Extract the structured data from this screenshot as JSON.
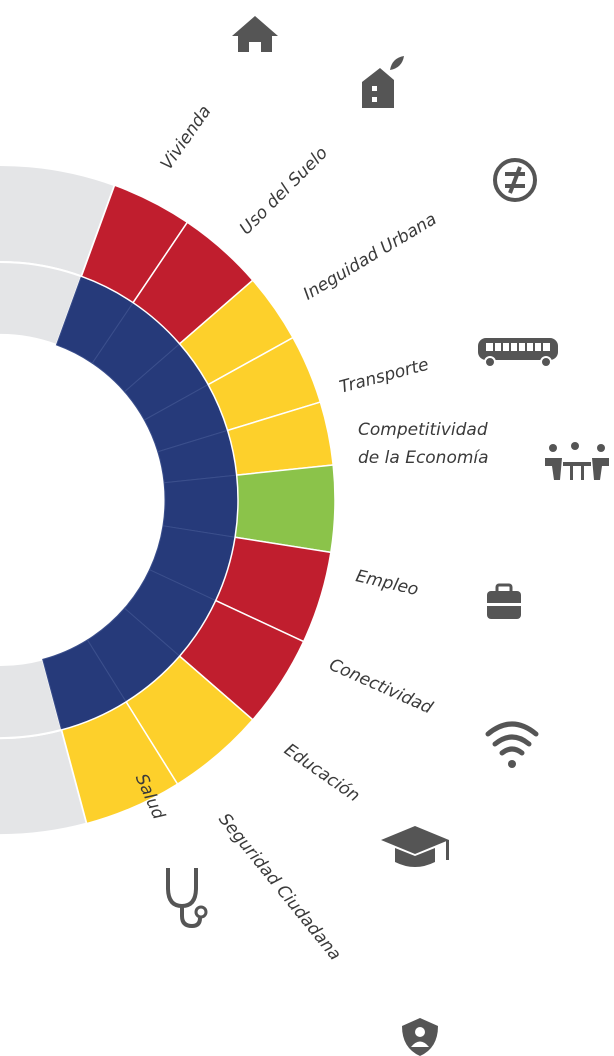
{
  "nodes": [
    {
      "lines": [
        "Vivienda"
      ],
      "color": "#c01e2e"
    },
    {
      "lines": [
        "Uso del Suelo"
      ],
      "color": "#c01e2e"
    },
    {
      "lines": [
        "Ineguidad Urbana"
      ],
      "color": "#fdd02b"
    },
    {
      "lines": [
        "Transporte"
      ],
      "color": "#fdd02b"
    },
    {
      "lines": [
        "Competitividad",
        "de la Economía"
      ],
      "color": "#fdd02b"
    },
    {
      "lines": [
        "Empleo"
      ],
      "color": "#8bc34a"
    },
    {
      "lines": [
        "Conectividad"
      ],
      "color": "#c01e2e"
    },
    {
      "lines": [
        "Educación"
      ],
      "color": "#c01e2e"
    },
    {
      "lines": [
        "Seguridad Ciudadana"
      ],
      "color": "#fdd02b"
    },
    {
      "lines": [
        "Salud"
      ],
      "color": "#fdd02b"
    }
  ]
}
